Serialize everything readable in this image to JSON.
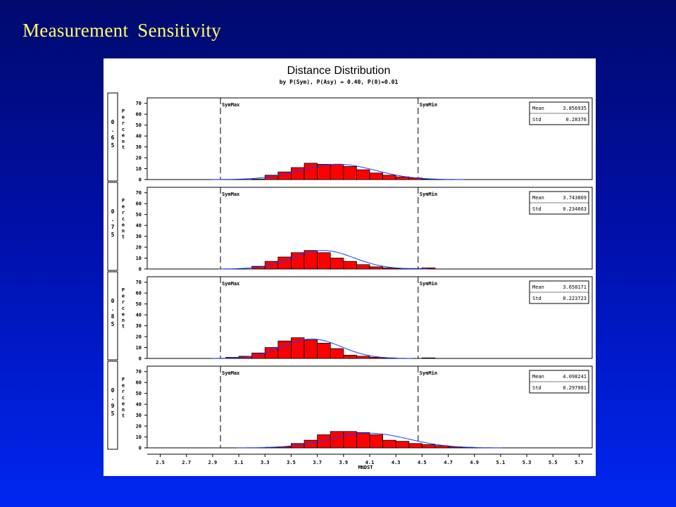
{
  "slide": {
    "title": "Measurement Sensitivity"
  },
  "chart_data": {
    "type": "histogram",
    "title": "Distance Distribution",
    "subtitle": "by P(Sym), P(Asy) = 0.40, P(0)=0.01",
    "xlabel": "MNDST",
    "ylabel": "Percent",
    "x_ticks": [
      "2.5",
      "2.7",
      "2.9",
      "3.1",
      "3.3",
      "3.5",
      "3.7",
      "3.9",
      "4.1",
      "4.3",
      "4.5",
      "4.7",
      "4.9",
      "5.1",
      "5.3",
      "5.5",
      "5.7"
    ],
    "xlim": [
      2.4,
      5.8
    ],
    "y_ticks": [
      "0",
      "10",
      "20",
      "30",
      "40",
      "50",
      "60",
      "70"
    ],
    "ylim": [
      0,
      75
    ],
    "bin_width": 0.1,
    "reference_lines": [
      {
        "label": "SymMax",
        "x": 2.96
      },
      {
        "label": "SymMin",
        "x": 4.47
      }
    ],
    "fit_curve": "normal",
    "stats_labels": {
      "mean": "Mean",
      "std": "Std"
    },
    "panels": [
      {
        "label": "0.65",
        "mean": "3.856935",
        "std": "0.28376",
        "bins": [
          [
            3.2,
            0.5
          ],
          [
            3.3,
            4
          ],
          [
            3.4,
            7
          ],
          [
            3.5,
            11
          ],
          [
            3.6,
            15
          ],
          [
            3.7,
            14
          ],
          [
            3.8,
            14
          ],
          [
            3.9,
            12
          ],
          [
            4.0,
            9
          ],
          [
            4.1,
            6
          ],
          [
            4.2,
            4
          ],
          [
            4.3,
            2.5
          ],
          [
            4.4,
            1.5
          ],
          [
            4.5,
            0.5
          ]
        ]
      },
      {
        "label": "0.75",
        "mean": "3.743869",
        "std": "0.234663",
        "bins": [
          [
            3.2,
            2.5
          ],
          [
            3.3,
            7
          ],
          [
            3.4,
            11
          ],
          [
            3.5,
            15
          ],
          [
            3.6,
            17
          ],
          [
            3.7,
            15
          ],
          [
            3.8,
            10
          ],
          [
            3.9,
            7
          ],
          [
            4.0,
            4
          ],
          [
            4.1,
            2
          ],
          [
            4.2,
            1
          ],
          [
            4.3,
            0.5
          ],
          [
            4.4,
            0.5
          ],
          [
            4.5,
            1
          ]
        ]
      },
      {
        "label": "0.85",
        "mean": "3.658171",
        "std": "0.223723",
        "bins": [
          [
            3.0,
            1
          ],
          [
            3.1,
            2
          ],
          [
            3.2,
            5
          ],
          [
            3.3,
            10
          ],
          [
            3.4,
            16
          ],
          [
            3.5,
            19
          ],
          [
            3.6,
            17
          ],
          [
            3.7,
            14
          ],
          [
            3.8,
            9
          ],
          [
            3.9,
            3
          ],
          [
            4.0,
            2
          ],
          [
            4.1,
            1
          ],
          [
            4.2,
            0.5
          ],
          [
            4.5,
            0.5
          ]
        ]
      },
      {
        "label": "0.95",
        "mean": "4.098241",
        "std": "0.297981",
        "bins": [
          [
            3.3,
            0.5
          ],
          [
            3.4,
            1
          ],
          [
            3.5,
            4
          ],
          [
            3.6,
            7
          ],
          [
            3.7,
            12
          ],
          [
            3.8,
            15
          ],
          [
            3.9,
            15
          ],
          [
            4.0,
            14
          ],
          [
            4.1,
            12
          ],
          [
            4.2,
            7
          ],
          [
            4.3,
            6
          ],
          [
            4.4,
            4
          ],
          [
            4.5,
            3
          ],
          [
            4.6,
            2
          ],
          [
            4.7,
            1
          ],
          [
            4.8,
            0.5
          ]
        ]
      }
    ]
  }
}
